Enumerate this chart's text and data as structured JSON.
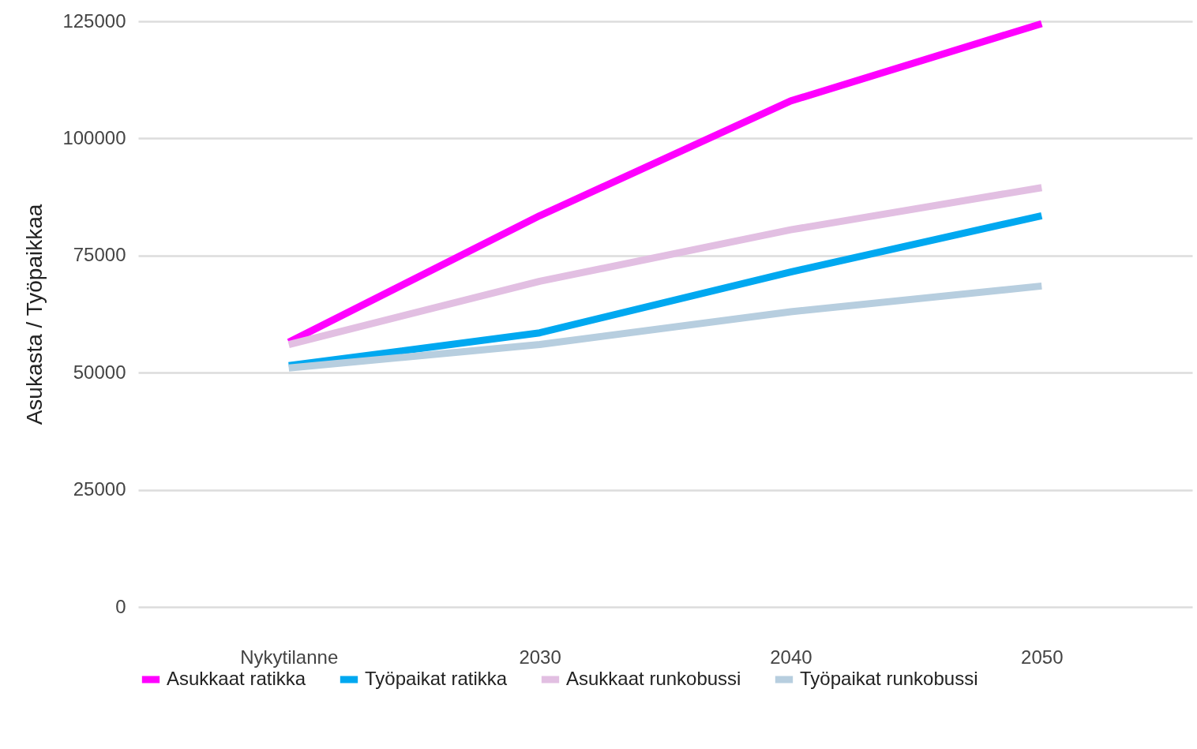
{
  "chart_data": {
    "type": "line",
    "ylabel": "Asukasta / Työpaikkaa",
    "categories": [
      "Nykytilanne",
      "2030",
      "2040",
      "2050"
    ],
    "series": [
      {
        "name": "Asukkaat ratikka",
        "color": "#ff00ff",
        "values": [
          56500,
          83500,
          108000,
          124500
        ]
      },
      {
        "name": "Työpaikat ratikka",
        "color": "#00a8f0",
        "values": [
          51500,
          58500,
          71500,
          83500
        ]
      },
      {
        "name": "Asukkaat runkobussi",
        "color": "#e2bfe2",
        "values": [
          56000,
          69500,
          80500,
          89500
        ]
      },
      {
        "name": "Työpaikat runkobussi",
        "color": "#b7cedf",
        "values": [
          51000,
          56000,
          63000,
          68500
        ]
      }
    ],
    "ylim": [
      0,
      125000
    ],
    "yticks": [
      0,
      25000,
      50000,
      75000,
      100000,
      125000
    ],
    "grid": "y",
    "legend": "bottom",
    "line_style": "solid",
    "marker": "none"
  }
}
